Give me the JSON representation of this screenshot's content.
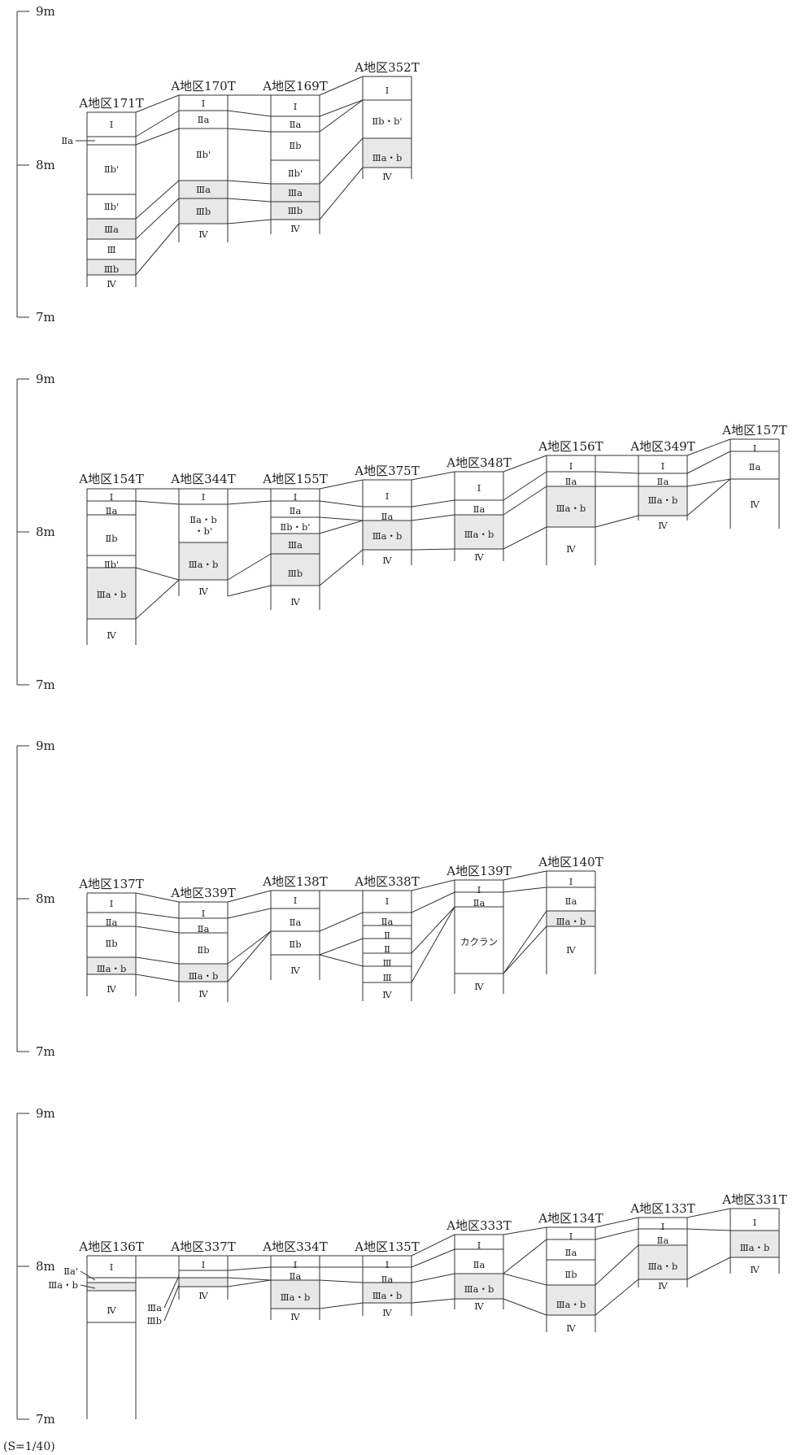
{
  "scale_note": "(S=1/40)",
  "panels": [
    {
      "axis": {
        "top_label": "9m",
        "mid_label": "8m",
        "bottom_label": "7m"
      },
      "trenches": [
        {
          "name": "A地区171T",
          "layers": [
            "Ⅰ",
            "",
            "Ⅱb'",
            "Ⅱb'",
            "Ⅲa",
            "Ⅲ",
            "Ⅲb",
            "Ⅳ"
          ]
        },
        {
          "name": "A地区170T",
          "layers": [
            "Ⅰ",
            "Ⅱa",
            "Ⅱb'",
            "Ⅲa",
            "Ⅲb",
            "Ⅳ"
          ]
        },
        {
          "name": "A地区169T",
          "layers": [
            "Ⅰ",
            "Ⅱa",
            "Ⅱb",
            "Ⅱb'",
            "Ⅲa",
            "Ⅲb",
            "Ⅳ"
          ]
        },
        {
          "name": "A地区352T",
          "layers": [
            "Ⅰ",
            "Ⅱb・b'",
            "Ⅲa・b",
            "Ⅳ"
          ]
        }
      ],
      "callouts": [
        "Ⅱa"
      ]
    },
    {
      "axis": {
        "top_label": "9m",
        "mid_label": "8m",
        "bottom_label": "7m"
      },
      "trenches": [
        {
          "name": "A地区154T",
          "layers": [
            "Ⅰ",
            "Ⅱa",
            "Ⅱb",
            "Ⅱb'",
            "Ⅲa・b",
            "Ⅳ"
          ]
        },
        {
          "name": "A地区344T",
          "layers": [
            "Ⅰ",
            "Ⅱa・b",
            "・b'",
            "Ⅲa・b",
            "Ⅳ"
          ]
        },
        {
          "name": "A地区155T",
          "layers": [
            "Ⅰ",
            "Ⅱa",
            "Ⅱb・b'",
            "Ⅲa",
            "Ⅲb",
            "Ⅳ"
          ]
        },
        {
          "name": "A地区375T",
          "layers": [
            "Ⅰ",
            "Ⅱa",
            "Ⅲa・b",
            "Ⅳ"
          ]
        },
        {
          "name": "A地区348T",
          "layers": [
            "Ⅰ",
            "Ⅱa",
            "Ⅲa・b",
            "Ⅳ"
          ]
        },
        {
          "name": "A地区156T",
          "layers": [
            "Ⅰ",
            "Ⅱa",
            "Ⅲa・b",
            "Ⅳ"
          ]
        },
        {
          "name": "A地区349T",
          "layers": [
            "Ⅰ",
            "Ⅱa",
            "Ⅲa・b",
            "Ⅳ"
          ]
        },
        {
          "name": "A地区157T",
          "layers": [
            "Ⅰ",
            "Ⅱa",
            "Ⅳ"
          ]
        }
      ],
      "callouts": []
    },
    {
      "axis": {
        "top_label": "9m",
        "mid_label": "8m",
        "bottom_label": "7m"
      },
      "trenches": [
        {
          "name": "A地区137T",
          "layers": [
            "Ⅰ",
            "Ⅱa",
            "Ⅱb",
            "Ⅲa・b",
            "Ⅳ"
          ]
        },
        {
          "name": "A地区339T",
          "layers": [
            "Ⅰ",
            "Ⅱa",
            "Ⅱb",
            "Ⅲa・b",
            "Ⅳ"
          ]
        },
        {
          "name": "A地区138T",
          "layers": [
            "Ⅰ",
            "Ⅱa",
            "Ⅱb",
            "Ⅳ"
          ]
        },
        {
          "name": "A地区338T",
          "layers": [
            "Ⅰ",
            "Ⅱa",
            "Ⅱ",
            "Ⅱ",
            "Ⅲ",
            "Ⅲ",
            "Ⅳ"
          ]
        },
        {
          "name": "A地区139T",
          "layers": [
            "Ⅰ",
            "Ⅱa",
            "カクラン",
            "Ⅳ"
          ]
        },
        {
          "name": "A地区140T",
          "layers": [
            "Ⅰ",
            "Ⅱa",
            "Ⅲa・b",
            "Ⅳ"
          ]
        }
      ],
      "callouts": []
    },
    {
      "axis": {
        "top_label": "9m",
        "mid_label": "8m",
        "bottom_label": "7m"
      },
      "trenches": [
        {
          "name": "A地区136T",
          "layers": [
            "Ⅰ",
            "",
            "",
            "Ⅳ"
          ]
        },
        {
          "name": "A地区337T",
          "layers": [
            "Ⅰ",
            "",
            "",
            "Ⅳ"
          ]
        },
        {
          "name": "A地区334T",
          "layers": [
            "Ⅰ",
            "Ⅱa",
            "Ⅲa・b",
            "Ⅳ"
          ]
        },
        {
          "name": "A地区135T",
          "layers": [
            "Ⅰ",
            "Ⅱa",
            "Ⅲa・b",
            "Ⅳ"
          ]
        },
        {
          "name": "A地区333T",
          "layers": [
            "Ⅰ",
            "Ⅱa",
            "Ⅲa・b",
            "Ⅳ"
          ]
        },
        {
          "name": "A地区134T",
          "layers": [
            "Ⅰ",
            "Ⅱa",
            "Ⅱb",
            "Ⅲa・b",
            "Ⅳ"
          ]
        },
        {
          "name": "A地区133T",
          "layers": [
            "Ⅰ",
            "Ⅱa",
            "Ⅲa・b",
            "Ⅳ"
          ]
        },
        {
          "name": "A地区331T",
          "layers": [
            "Ⅰ",
            "Ⅲa・b",
            "Ⅳ"
          ]
        }
      ],
      "callouts": [
        "Ⅱa'",
        "Ⅲa・b",
        "Ⅲa",
        "Ⅲb"
      ]
    }
  ],
  "colors": {
    "line": "#333333",
    "shade": "#e8e8e8",
    "text": "#222222"
  }
}
